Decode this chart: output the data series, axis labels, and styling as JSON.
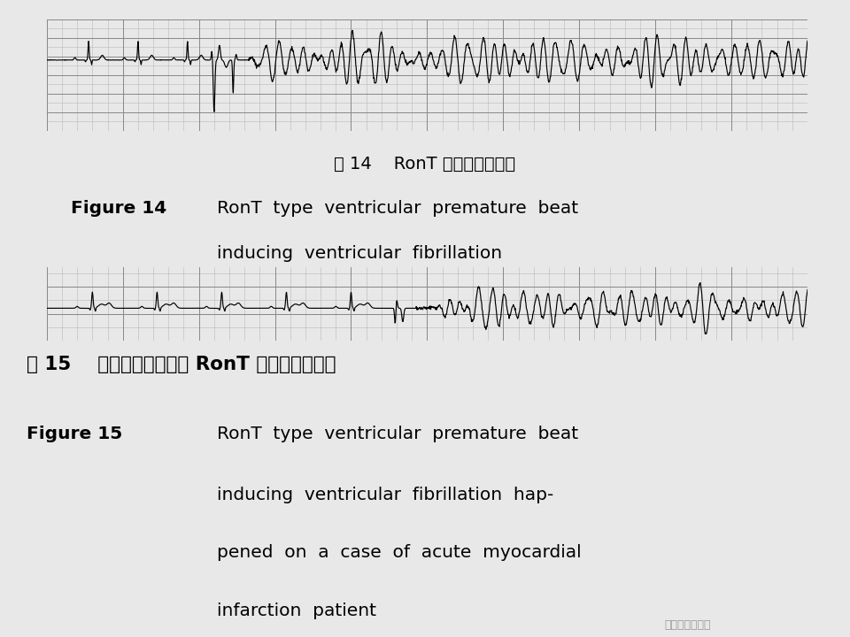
{
  "bg_color": "#e8e8e8",
  "ecg1_bg": "#f5f2ec",
  "ecg2_bg": "#f5f2ec",
  "grid_minor_color": "#b8b8b8",
  "grid_major_color": "#888888",
  "text_bg": "#e8e8e8",
  "fig14_cn": "图 14    RonT 型室早诱发室颤",
  "fig15_cn": "图 15    急性心肌梗死患者 RonT 型室早诱发室颤",
  "fig14_en_bold": "Figure 14",
  "fig14_en_line1": "RonT  type  ventricular  premature  beat",
  "fig14_en_line2": "inducing  ventricular  fibrillation",
  "fig15_en_bold": "Figure 15",
  "fig15_en_line1": "RonT  type  ventricular  premature  beat",
  "fig15_en_line2": "inducing  ventricular  fibrillation  hap-",
  "fig15_en_line3": "pened  on  a  case  of  acute  myocardial",
  "fig15_en_line4": "infarction  patient",
  "watermark": "朱晓晓心电资讯"
}
